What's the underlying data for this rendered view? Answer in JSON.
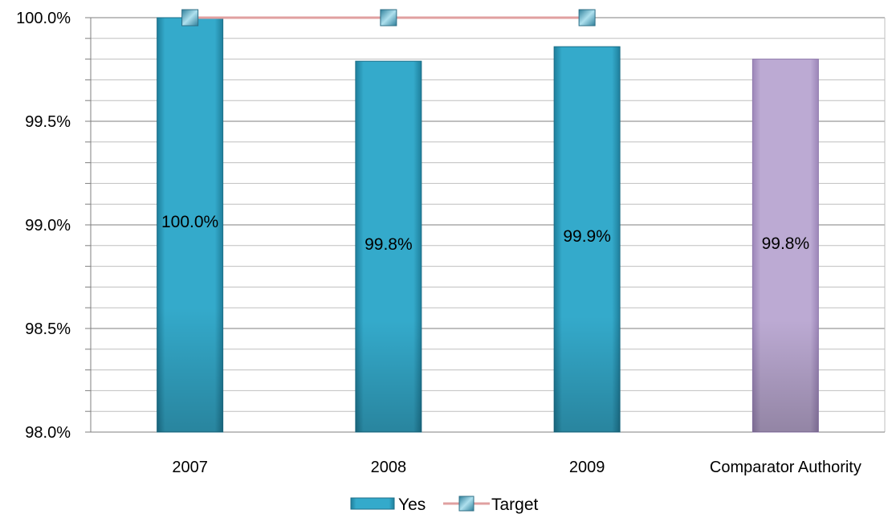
{
  "chart_data": {
    "type": "bar",
    "title": "",
    "xlabel": "",
    "ylabel": "",
    "categories": [
      "2007",
      "2008",
      "2009",
      "Comparator Authority"
    ],
    "ylim": [
      98.0,
      100.0
    ],
    "yticks": [
      "98.0%",
      "98.5%",
      "99.0%",
      "99.5%",
      "100.0%"
    ],
    "series": [
      {
        "name": "Yes",
        "type": "bar",
        "values": [
          100.0,
          99.79,
          99.86,
          99.8
        ],
        "labels": [
          "100.0%",
          "99.8%",
          "99.9%",
          "99.8%"
        ],
        "colors": [
          "#31a7c8",
          "#31a7c8",
          "#31a7c8",
          "#bba9d2"
        ]
      },
      {
        "name": "Target",
        "type": "line",
        "values": [
          100.0,
          100.0,
          100.0,
          null
        ],
        "color": "#e0a0a0"
      }
    ],
    "grid": true,
    "legend_position": "bottom"
  }
}
